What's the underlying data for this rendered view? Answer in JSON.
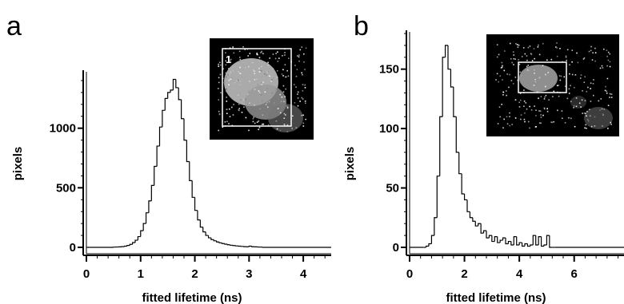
{
  "chart_data": [
    {
      "panel": "a",
      "type": "histogram",
      "xlabel": "fitted lifetime (ns)",
      "ylabel": "pixels",
      "xlim": [
        0,
        4.5
      ],
      "ylim": [
        -80,
        1460
      ],
      "xticks": [
        0,
        1,
        2,
        3,
        4
      ],
      "yticks": [
        0,
        500,
        1000
      ],
      "bin_width": 0.05,
      "x": [
        0.5,
        0.55,
        0.6,
        0.65,
        0.7,
        0.75,
        0.8,
        0.85,
        0.9,
        0.95,
        1.0,
        1.05,
        1.1,
        1.15,
        1.2,
        1.25,
        1.3,
        1.35,
        1.4,
        1.45,
        1.5,
        1.55,
        1.6,
        1.65,
        1.7,
        1.75,
        1.8,
        1.85,
        1.9,
        1.95,
        2.0,
        2.05,
        2.1,
        2.15,
        2.2,
        2.25,
        2.3,
        2.35,
        2.4,
        2.45,
        2.5,
        2.55,
        2.6,
        2.65,
        2.7,
        2.75,
        2.8,
        2.85,
        2.9,
        2.95,
        3.0,
        3.05,
        3.1,
        3.15,
        3.2
      ],
      "values": [
        2,
        3,
        4,
        6,
        10,
        16,
        25,
        40,
        60,
        90,
        140,
        200,
        290,
        390,
        520,
        680,
        850,
        1010,
        1150,
        1250,
        1300,
        1320,
        1410,
        1340,
        1240,
        1080,
        900,
        720,
        560,
        420,
        310,
        230,
        170,
        130,
        100,
        80,
        65,
        55,
        45,
        38,
        32,
        27,
        22,
        18,
        15,
        12,
        10,
        8,
        6,
        5,
        10,
        5,
        4,
        3,
        2
      ],
      "inset": {
        "label": "1"
      }
    },
    {
      "panel": "b",
      "type": "histogram",
      "xlabel": "fitted lifetime (ns)",
      "ylabel": "pixels",
      "xlim": [
        0,
        7.7
      ],
      "ylim": [
        -8,
        180
      ],
      "xticks": [
        0,
        2,
        4,
        6
      ],
      "yticks": [
        0,
        50,
        100,
        150
      ],
      "bin_width": 0.1,
      "x": [
        0.5,
        0.6,
        0.7,
        0.8,
        0.9,
        1.0,
        1.1,
        1.2,
        1.3,
        1.4,
        1.5,
        1.6,
        1.7,
        1.8,
        1.9,
        2.0,
        2.1,
        2.2,
        2.3,
        2.4,
        2.5,
        2.6,
        2.7,
        2.8,
        2.9,
        3.0,
        3.1,
        3.2,
        3.3,
        3.4,
        3.5,
        3.6,
        3.7,
        3.8,
        3.9,
        4.0,
        4.1,
        4.2,
        4.3,
        4.4,
        4.5,
        4.6,
        4.7,
        4.8,
        4.9,
        5.0,
        5.1,
        5.2
      ],
      "values": [
        0,
        1,
        3,
        10,
        25,
        60,
        110,
        160,
        170,
        150,
        135,
        110,
        80,
        62,
        45,
        40,
        30,
        25,
        22,
        18,
        20,
        12,
        14,
        8,
        10,
        5,
        9,
        4,
        6,
        8,
        3,
        5,
        2,
        9,
        2,
        4,
        1,
        3,
        1,
        2,
        10,
        2,
        9,
        1,
        2,
        10,
        0,
        0
      ],
      "inset": {
        "label": ""
      }
    }
  ],
  "panel_letters": [
    "a",
    "b"
  ]
}
